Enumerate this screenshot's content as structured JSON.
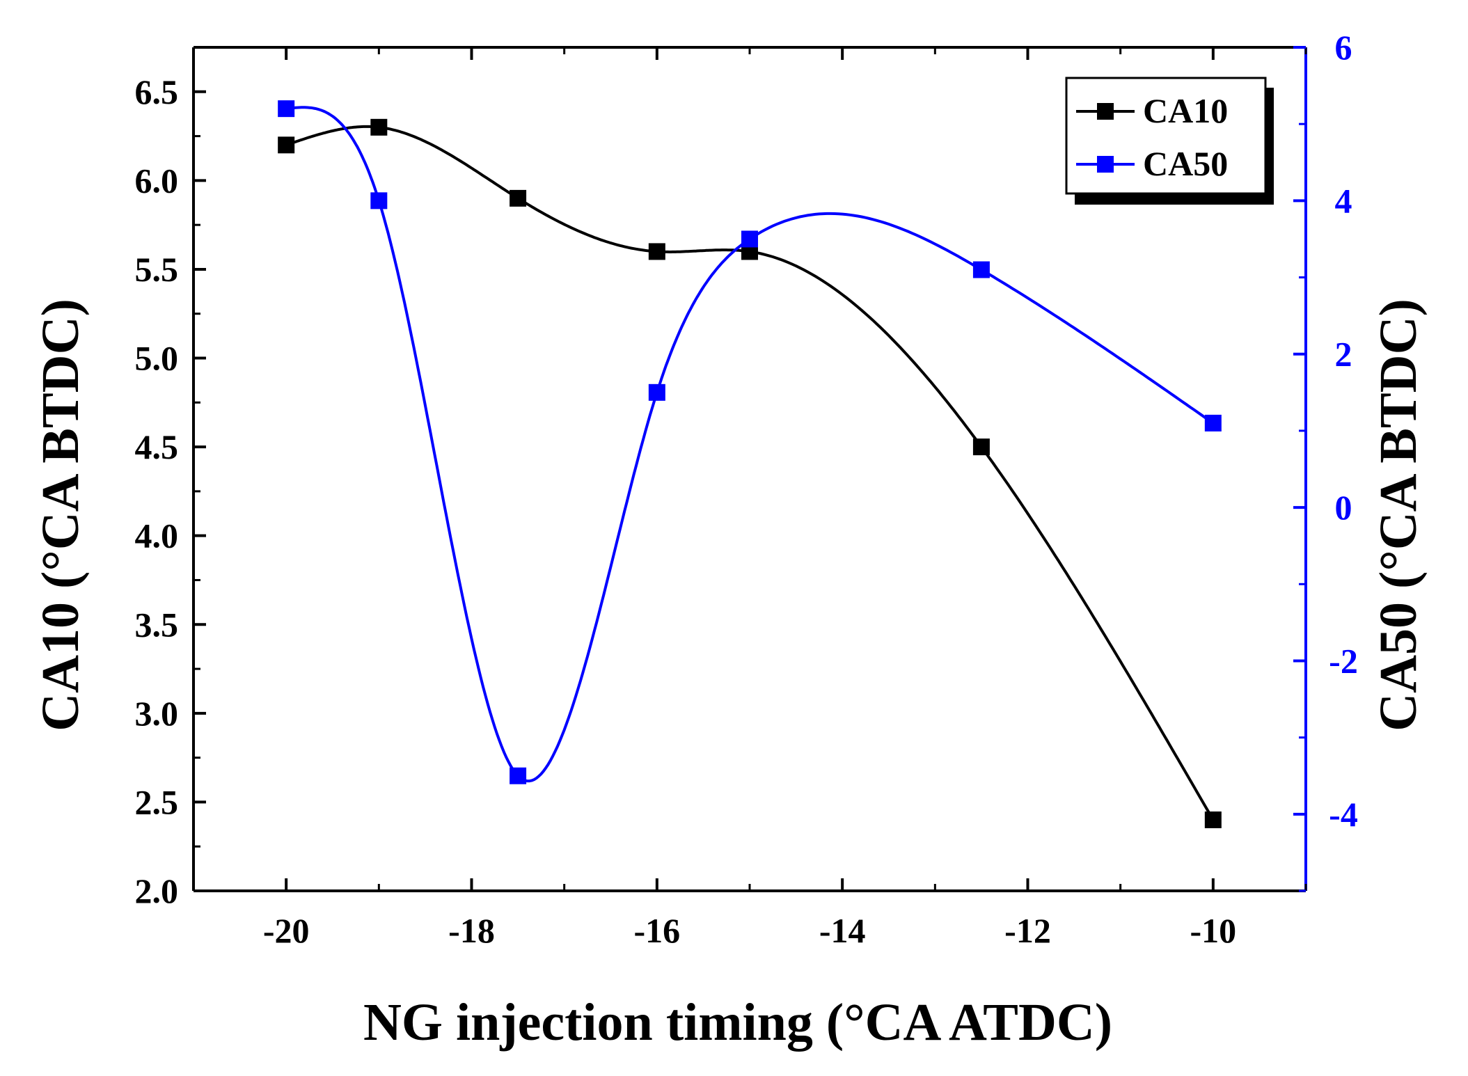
{
  "chart_data": {
    "type": "scatter",
    "xlabel": "NG injection timing (°CA ATDC)",
    "ylabel_left": "CA10 (°CA BTDC)",
    "ylabel_right": "CA50 (°CA BTDC)",
    "xlim": [
      -21,
      -9
    ],
    "ylim_left": [
      2.0,
      6.75
    ],
    "ylim_right": [
      -5,
      6
    ],
    "x_ticks": [
      -20,
      -18,
      -16,
      -14,
      -12,
      -10
    ],
    "x_tick_labels": [
      "-20",
      "-18",
      "-16",
      "-14",
      "-12",
      "-10"
    ],
    "y_left_ticks": [
      2.0,
      2.5,
      3.0,
      3.5,
      4.0,
      4.5,
      5.0,
      5.5,
      6.0,
      6.5
    ],
    "y_left_tick_labels": [
      "2.0",
      "2.5",
      "3.0",
      "3.5",
      "4.0",
      "4.5",
      "5.0",
      "5.5",
      "6.0",
      "6.5"
    ],
    "y_right_ticks": [
      -4,
      -2,
      0,
      2,
      4,
      6
    ],
    "y_right_tick_labels": [
      "-4",
      "-2",
      "0",
      "2",
      "4",
      "6"
    ],
    "legend_position": "top-right",
    "series": [
      {
        "name": "CA10",
        "axis": "left",
        "color": "#000000",
        "x": [
          -20,
          -19,
          -17.5,
          -16,
          -15,
          -12.5,
          -10
        ],
        "y": [
          6.2,
          6.3,
          5.9,
          5.6,
          5.6,
          4.5,
          2.4
        ]
      },
      {
        "name": "CA50",
        "axis": "right",
        "color": "#0000ff",
        "x": [
          -20,
          -19,
          -17.5,
          -16,
          -15,
          -12.5,
          -10
        ],
        "y": [
          5.2,
          4.0,
          -3.5,
          1.5,
          3.5,
          3.1,
          1.1
        ]
      }
    ]
  }
}
